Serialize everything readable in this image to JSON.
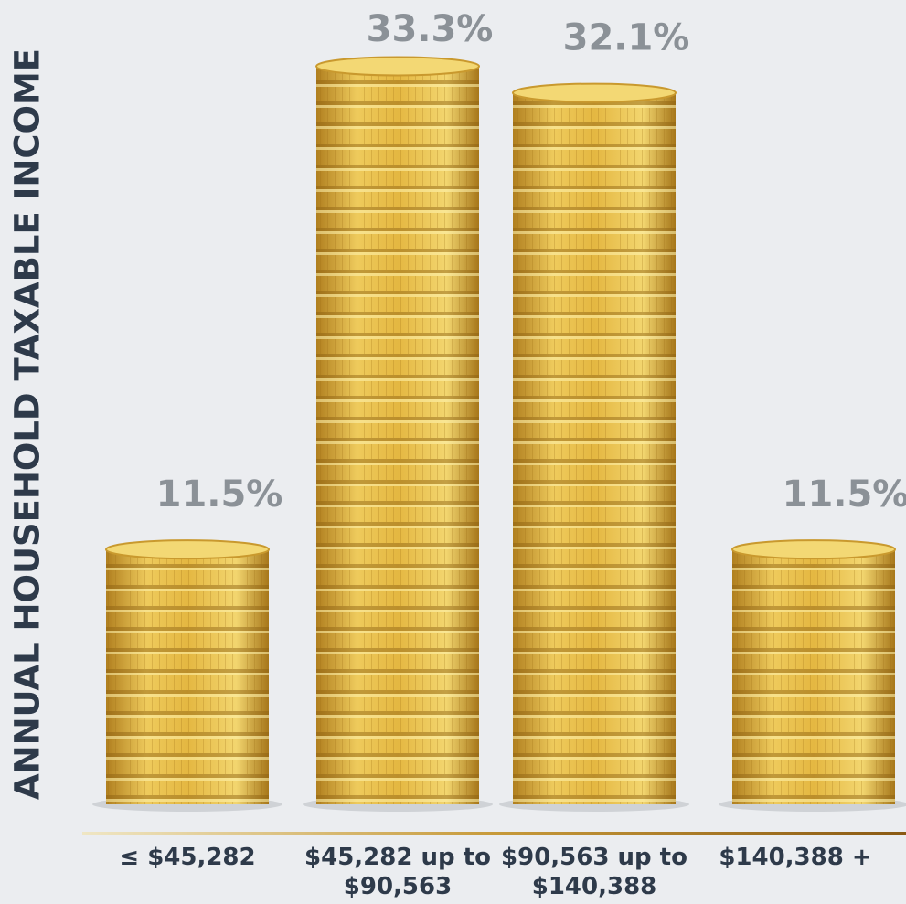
{
  "chart_data": {
    "type": "bar",
    "y_label": "ANNUAL HOUSEHOLD TAXABLE INCOME",
    "categories": [
      "≤ $45,282",
      "$45,282 up to $90,563",
      "$90,563 up to $140,388",
      "$140,388 +"
    ],
    "values": [
      11.5,
      33.3,
      32.1,
      11.5
    ],
    "value_labels": [
      "11.5%",
      "33.3%",
      "32.1%",
      "11.5%"
    ],
    "color": "#e0b23c",
    "ylim": [
      0,
      36
    ]
  }
}
